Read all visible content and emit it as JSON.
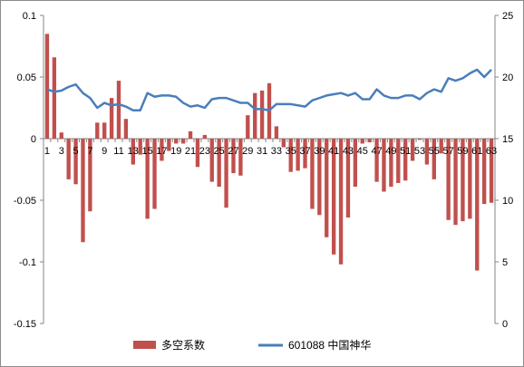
{
  "chart_data": {
    "type": "bar+line",
    "title": "",
    "x": [
      1,
      2,
      3,
      4,
      5,
      6,
      7,
      8,
      9,
      10,
      11,
      12,
      13,
      14,
      15,
      16,
      17,
      18,
      19,
      20,
      21,
      22,
      23,
      24,
      25,
      26,
      27,
      28,
      29,
      30,
      31,
      32,
      33,
      34,
      35,
      36,
      37,
      38,
      39,
      40,
      41,
      42,
      43,
      44,
      45,
      46,
      47,
      48,
      49,
      50,
      51,
      52,
      53,
      54,
      55,
      56,
      57,
      58,
      59,
      60,
      61,
      62,
      63
    ],
    "x_tick_labels": [
      "1",
      "3",
      "5",
      "7",
      "9",
      "11",
      "13",
      "15",
      "17",
      "19",
      "21",
      "23",
      "25",
      "27",
      "29",
      "31",
      "33",
      "35",
      "37",
      "39",
      "41",
      "43",
      "45",
      "47",
      "49",
      "51",
      "53",
      "55",
      "57",
      "59",
      "61",
      "63"
    ],
    "y_left": {
      "range": [
        -0.15,
        0.1
      ],
      "ticks": [
        "0.1",
        "0.05",
        "0",
        "-0.05",
        "-0.1",
        "-0.15"
      ]
    },
    "y_right": {
      "range": [
        0,
        25
      ],
      "ticks": [
        "25",
        "20",
        "15",
        "10",
        "5",
        "0"
      ]
    },
    "series": [
      {
        "name": "多空系数",
        "kind": "bar",
        "axis": "left",
        "color": "#c0504d",
        "values": [
          0.085,
          0.066,
          0.005,
          -0.033,
          -0.037,
          -0.084,
          -0.059,
          0.013,
          0.013,
          0.033,
          0.047,
          0.016,
          -0.021,
          -0.013,
          -0.065,
          -0.057,
          -0.018,
          -0.01,
          -0.004,
          -0.004,
          0.006,
          -0.023,
          0.003,
          -0.035,
          -0.039,
          -0.056,
          -0.028,
          -0.03,
          0.019,
          0.037,
          0.039,
          0.045,
          0.01,
          -0.007,
          -0.027,
          -0.026,
          -0.024,
          -0.057,
          -0.062,
          -0.08,
          -0.094,
          -0.102,
          -0.064,
          -0.039,
          -0.004,
          -0.003,
          -0.035,
          -0.043,
          -0.039,
          -0.036,
          -0.034,
          -0.018,
          -0.001,
          -0.021,
          -0.033,
          -0.012,
          -0.066,
          -0.07,
          -0.067,
          -0.065,
          -0.107,
          -0.053,
          -0.052
        ]
      },
      {
        "name": "601088 中国神华",
        "kind": "line",
        "axis": "right",
        "color": "#4a7ebb",
        "values": [
          19.0,
          18.8,
          18.9,
          19.2,
          19.4,
          18.7,
          18.3,
          17.5,
          17.9,
          17.7,
          17.8,
          17.6,
          17.3,
          17.3,
          18.7,
          18.4,
          18.5,
          18.5,
          18.4,
          17.9,
          17.6,
          17.7,
          17.5,
          18.2,
          18.3,
          18.3,
          18.1,
          17.9,
          17.9,
          17.4,
          17.4,
          17.3,
          17.8,
          17.8,
          17.8,
          17.7,
          17.6,
          18.1,
          18.3,
          18.5,
          18.6,
          18.7,
          18.5,
          18.7,
          18.2,
          18.2,
          19.0,
          18.5,
          18.3,
          18.3,
          18.5,
          18.5,
          18.2,
          18.7,
          19.0,
          18.8,
          19.9,
          19.7,
          19.9,
          20.3,
          20.6,
          20.0,
          20.6
        ]
      }
    ],
    "grid": false,
    "legend": {
      "position": "bottom",
      "items": [
        {
          "label": "多空系数",
          "marker": "rect",
          "color": "#c0504d"
        },
        {
          "label": "601088 中国神华",
          "marker": "line",
          "color": "#4a7ebb"
        }
      ]
    }
  }
}
